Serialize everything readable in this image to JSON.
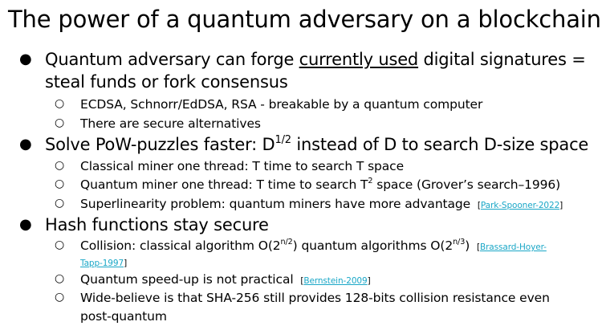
{
  "title": "The power of a quantum adversary on a blockchain",
  "bullets": [
    {
      "line1_pre": "Quantum adversary can forge ",
      "line1_underlined": "currently used",
      "line1_post": " digital signatures =",
      "line2": "steal funds or fork consensus",
      "sub": [
        "ECDSA, Schnorr/EdDSA, RSA - breakable by a quantum computer",
        "There are secure alternatives"
      ]
    },
    {
      "text_pre": "Solve PoW-puzzles faster: D",
      "text_sup": "1/2",
      "text_post": " instead of D to search D-size space",
      "sub": [
        {
          "text": "Classical miner one thread: T time to search T space"
        },
        {
          "pre": "Quantum miner one thread: T time to search T",
          "sup": "2",
          "post": " space (Grover’s search–1996)"
        },
        {
          "text": "Superlinearity problem: quantum miners have more advantage",
          "cite": "Park-Spooner-2022"
        }
      ]
    },
    {
      "text": "Hash functions stay secure",
      "sub": [
        {
          "pre": "Collision: classical algorithm O(2",
          "sup1": "n/2",
          "mid": ") quantum algorithms O(2",
          "sup2": "n/3",
          "post": ")",
          "cite_a": "Brassard-Hoyer-",
          "cite_b": "Tapp-1997"
        },
        {
          "text": "Quantum speed-up is not practical",
          "cite": "Bernstein-2009"
        },
        {
          "line1": "Wide-believe is that SHA-256 still provides 128-bits collision resistance even",
          "line2": "post-quantum"
        }
      ]
    }
  ],
  "bullet_glyph_l1": "●",
  "bullet_glyph_l2": "○",
  "colors": {
    "text": "#000000",
    "link": "#1aa7c7",
    "background": "#ffffff"
  }
}
